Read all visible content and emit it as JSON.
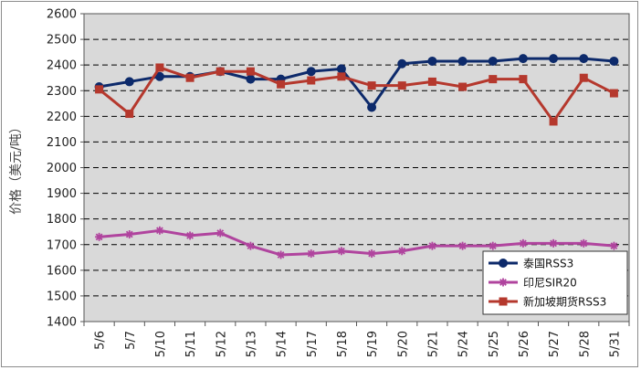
{
  "chart_data": {
    "type": "line",
    "title": "",
    "xlabel": "",
    "ylabel": "价格（美元/吨）",
    "ylim": [
      1400,
      2600
    ],
    "yticks": [
      1400,
      1500,
      1600,
      1700,
      1800,
      1900,
      2000,
      2100,
      2200,
      2300,
      2400,
      2500,
      2600
    ],
    "grid": true,
    "legend_position": "bottom-right",
    "categories": [
      "5/6",
      "5/7",
      "5/10",
      "5/11",
      "5/12",
      "5/13",
      "5/14",
      "5/17",
      "5/18",
      "5/19",
      "5/20",
      "5/21",
      "5/24",
      "5/25",
      "5/26",
      "5/27",
      "5/28",
      "5/31"
    ],
    "series": [
      {
        "name": "泰国RSS3",
        "color": "#0d2a6b",
        "marker": "circle",
        "values": [
          2315,
          2335,
          2355,
          2355,
          2375,
          2345,
          2345,
          2375,
          2385,
          2235,
          2405,
          2415,
          2415,
          2415,
          2425,
          2425,
          2425,
          2415
        ]
      },
      {
        "name": "印尼SIR20",
        "color": "#b0449e",
        "marker": "star",
        "values": [
          1730,
          1740,
          1755,
          1735,
          1745,
          1695,
          1660,
          1665,
          1675,
          1665,
          1675,
          1695,
          1695,
          1695,
          1705,
          1705,
          1705,
          1695
        ]
      },
      {
        "name": "新加坡期货RSS3",
        "color": "#b5382d",
        "marker": "square",
        "values": [
          2305,
          2210,
          2390,
          2350,
          2375,
          2375,
          2325,
          2340,
          2355,
          2320,
          2320,
          2335,
          2315,
          2345,
          2345,
          2180,
          2350,
          2290
        ]
      }
    ]
  }
}
